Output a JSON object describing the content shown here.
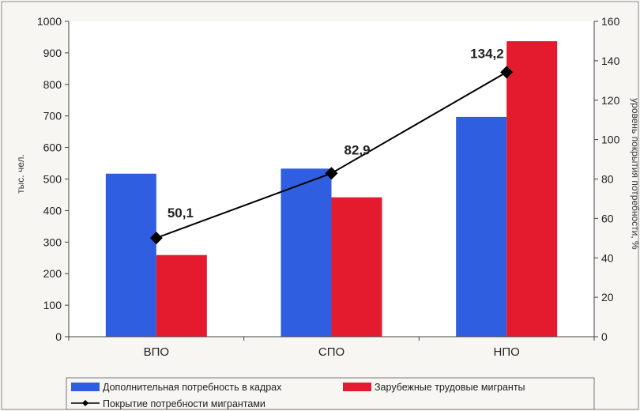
{
  "chart_data": {
    "type": "bar",
    "categories": [
      "ВПО",
      "СПО",
      "НПО"
    ],
    "series": [
      {
        "name": "Дополнительная потребность в кадрах",
        "kind": "bar",
        "axis": "left",
        "color": "#2f5fe0",
        "values": [
          517,
          533,
          697
        ]
      },
      {
        "name": "Зарубежные трудовые мигранты",
        "kind": "bar",
        "axis": "left",
        "color": "#e41b2e",
        "values": [
          259,
          442,
          937
        ]
      },
      {
        "name": "Покрытие потребности мигрантами",
        "kind": "line",
        "axis": "right",
        "color": "#000000",
        "values": [
          50.1,
          82.9,
          134.2
        ],
        "labels": [
          "50,1",
          "82,9",
          "134,2"
        ]
      }
    ],
    "ylabel": "тыс. чел.",
    "y2label": "уровень покрытия потребности, %",
    "ylim": [
      0,
      1000
    ],
    "y2lim": [
      0,
      160
    ],
    "yticks": [
      "0",
      "100",
      "200",
      "300",
      "400",
      "500",
      "600",
      "700",
      "800",
      "900",
      "1000"
    ],
    "y2ticks": [
      "0",
      "20",
      "40",
      "60",
      "80",
      "100",
      "120",
      "140",
      "160"
    ],
    "grid": false,
    "legend_position": "bottom"
  }
}
